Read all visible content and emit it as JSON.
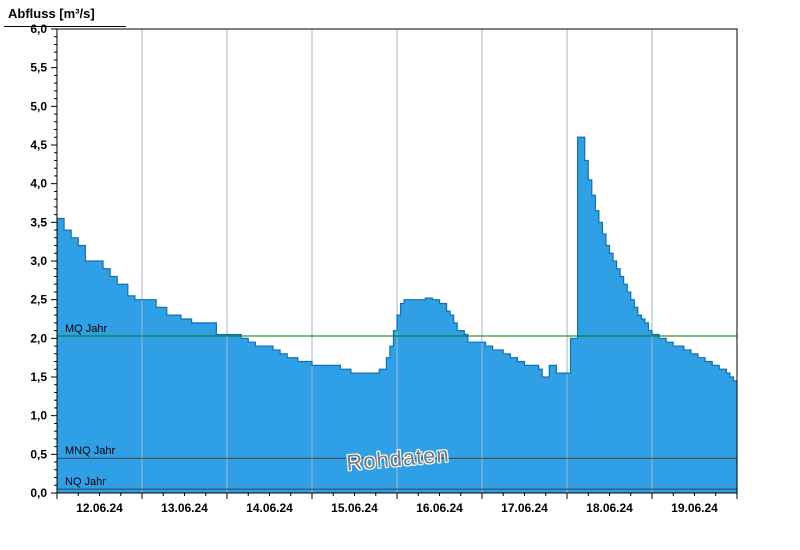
{
  "title": "Abfluss [m³/s]",
  "watermark": "Rohdaten",
  "chart_data": {
    "type": "area",
    "step": true,
    "x_unit": "hours_from_12.06.24_00:00",
    "x_range_hours": [
      0,
      192
    ],
    "x_tick_labels": [
      "12.06.24",
      "13.06.24",
      "14.06.24",
      "15.06.24",
      "16.06.24",
      "17.06.24",
      "18.06.24",
      "19.06.24"
    ],
    "ylim": [
      0,
      6
    ],
    "y_major_step": 0.5,
    "y_minor_step": 0.1,
    "y_tick_labels": [
      "0,0",
      "0,5",
      "1,0",
      "1,5",
      "2,0",
      "2,5",
      "3,0",
      "3,5",
      "4,0",
      "4,5",
      "5,0",
      "5,5",
      "6,0"
    ],
    "grid": "vertical-daily",
    "legend_position": "none",
    "series": [
      {
        "name": "Abfluss Rohdaten",
        "points": [
          [
            0,
            3.55
          ],
          [
            2,
            3.4
          ],
          [
            4,
            3.3
          ],
          [
            6,
            3.2
          ],
          [
            8,
            3.0
          ],
          [
            13,
            2.9
          ],
          [
            15,
            2.8
          ],
          [
            17,
            2.7
          ],
          [
            20,
            2.55
          ],
          [
            22,
            2.5
          ],
          [
            28,
            2.4
          ],
          [
            31,
            2.3
          ],
          [
            35,
            2.25
          ],
          [
            38,
            2.2
          ],
          [
            45,
            2.05
          ],
          [
            52,
            2.0
          ],
          [
            54,
            1.95
          ],
          [
            56,
            1.9
          ],
          [
            61,
            1.85
          ],
          [
            63,
            1.8
          ],
          [
            65,
            1.75
          ],
          [
            68,
            1.7
          ],
          [
            72,
            1.65
          ],
          [
            80,
            1.6
          ],
          [
            83,
            1.55
          ],
          [
            91,
            1.6
          ],
          [
            93,
            1.75
          ],
          [
            94,
            1.9
          ],
          [
            95,
            2.1
          ],
          [
            96,
            2.3
          ],
          [
            97,
            2.45
          ],
          [
            98,
            2.5
          ],
          [
            104,
            2.52
          ],
          [
            106,
            2.5
          ],
          [
            108,
            2.45
          ],
          [
            110,
            2.35
          ],
          [
            111,
            2.3
          ],
          [
            112,
            2.2
          ],
          [
            113,
            2.1
          ],
          [
            115,
            2.05
          ],
          [
            116,
            1.95
          ],
          [
            121,
            1.9
          ],
          [
            123,
            1.85
          ],
          [
            126,
            1.8
          ],
          [
            128,
            1.75
          ],
          [
            130,
            1.7
          ],
          [
            132,
            1.65
          ],
          [
            136,
            1.6
          ],
          [
            137,
            1.5
          ],
          [
            139,
            1.65
          ],
          [
            141,
            1.55
          ],
          [
            145,
            2.0
          ],
          [
            147,
            4.6
          ],
          [
            149,
            4.3
          ],
          [
            150,
            4.05
          ],
          [
            151,
            3.85
          ],
          [
            152,
            3.65
          ],
          [
            153,
            3.5
          ],
          [
            154,
            3.35
          ],
          [
            155,
            3.2
          ],
          [
            156,
            3.1
          ],
          [
            157,
            3.0
          ],
          [
            158,
            2.9
          ],
          [
            159,
            2.8
          ],
          [
            160,
            2.7
          ],
          [
            161,
            2.6
          ],
          [
            162,
            2.5
          ],
          [
            163,
            2.4
          ],
          [
            164,
            2.3
          ],
          [
            165,
            2.25
          ],
          [
            166,
            2.2
          ],
          [
            167,
            2.1
          ],
          [
            168,
            2.05
          ],
          [
            170,
            2.0
          ],
          [
            172,
            1.95
          ],
          [
            174,
            1.9
          ],
          [
            177,
            1.85
          ],
          [
            179,
            1.8
          ],
          [
            181,
            1.75
          ],
          [
            183,
            1.7
          ],
          [
            185,
            1.65
          ],
          [
            187,
            1.6
          ],
          [
            189,
            1.55
          ],
          [
            190,
            1.5
          ],
          [
            191,
            1.45
          ]
        ]
      }
    ],
    "reference_lines": [
      {
        "label": "MQ Jahr",
        "value": 2.03,
        "color": "#007a00"
      },
      {
        "label": "MNQ Jahr",
        "value": 0.45,
        "color": "#404040"
      },
      {
        "label": "NQ Jahr",
        "value": 0.05,
        "color": "#404040"
      }
    ],
    "colors": {
      "fill": "#2FA0E6",
      "stroke": "#1170B0",
      "grid": "#9FB8D0",
      "axis": "#000000",
      "tick_text": "#000000"
    }
  }
}
